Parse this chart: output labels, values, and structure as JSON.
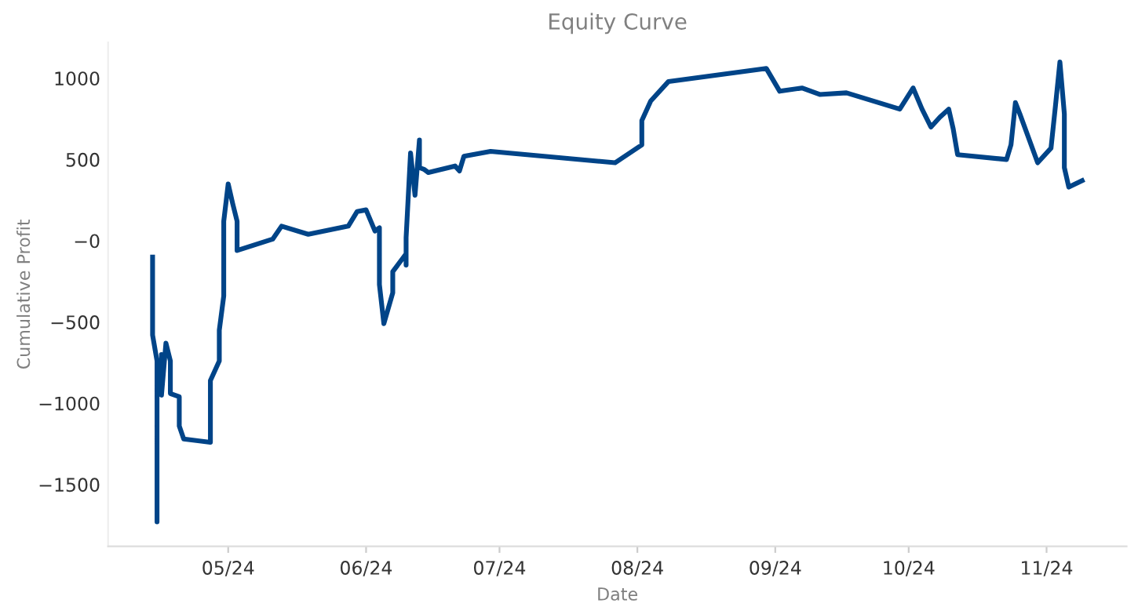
{
  "chart_data": {
    "type": "line",
    "title": "Equity Curve",
    "xlabel": "Date",
    "ylabel": "Cumulative Profit",
    "x": [
      "2024-04-14",
      "2024-04-14",
      "2024-04-15",
      "2024-04-15",
      "2024-04-15",
      "2024-04-16",
      "2024-04-16",
      "2024-04-16",
      "2024-04-17",
      "2024-04-18",
      "2024-04-18",
      "2024-04-20",
      "2024-04-20",
      "2024-04-21",
      "2024-04-27",
      "2024-04-27",
      "2024-04-29",
      "2024-04-29",
      "2024-04-30",
      "2024-04-30",
      "2024-05-01",
      "2024-05-02",
      "2024-05-03",
      "2024-05-03",
      "2024-05-11",
      "2024-05-13",
      "2024-05-19",
      "2024-05-28",
      "2024-05-30",
      "2024-06-01",
      "2024-06-03",
      "2024-06-04",
      "2024-06-04",
      "2024-06-05",
      "2024-06-07",
      "2024-06-07",
      "2024-06-10",
      "2024-06-10",
      "2024-06-10",
      "2024-06-11",
      "2024-06-12",
      "2024-06-13",
      "2024-06-13",
      "2024-06-14",
      "2024-06-15",
      "2024-06-21",
      "2024-06-22",
      "2024-06-23",
      "2024-06-29",
      "2024-07-27",
      "2024-08-02",
      "2024-08-02",
      "2024-08-04",
      "2024-08-08",
      "2024-08-30",
      "2024-09-02",
      "2024-09-07",
      "2024-09-11",
      "2024-09-17",
      "2024-09-29",
      "2024-10-02",
      "2024-10-04",
      "2024-10-06",
      "2024-10-08",
      "2024-10-10",
      "2024-10-11",
      "2024-10-12",
      "2024-10-23",
      "2024-10-24",
      "2024-10-25",
      "2024-10-26",
      "2024-10-30",
      "2024-11-02",
      "2024-11-03",
      "2024-11-04",
      "2024-11-05",
      "2024-11-05",
      "2024-11-06",
      "2024-11-09"
    ],
    "series": [
      {
        "color": "#004488",
        "values": [
          -100,
          -580,
          -740,
          -1730,
          -920,
          -900,
          -700,
          -950,
          -630,
          -740,
          -940,
          -960,
          -1140,
          -1220,
          -1240,
          -860,
          -740,
          -550,
          -340,
          120,
          350,
          230,
          120,
          -60,
          10,
          90,
          40,
          90,
          180,
          190,
          60,
          80,
          -270,
          -510,
          -320,
          -190,
          -80,
          -150,
          20,
          540,
          280,
          620,
          450,
          440,
          420,
          460,
          430,
          520,
          550,
          480,
          590,
          740,
          860,
          980,
          1060,
          920,
          940,
          900,
          910,
          810,
          940,
          810,
          700,
          760,
          810,
          690,
          530,
          500,
          590,
          850,
          780,
          480,
          570,
          830,
          1100,
          780,
          450,
          330,
          370
        ]
      }
    ],
    "xlim": [
      "2024-04-04",
      "2024-11-19"
    ],
    "xticks": [
      {
        "value": "2024-05-01",
        "label": "05/24"
      },
      {
        "value": "2024-06-01",
        "label": "06/24"
      },
      {
        "value": "2024-07-01",
        "label": "07/24"
      },
      {
        "value": "2024-08-01",
        "label": "08/24"
      },
      {
        "value": "2024-09-01",
        "label": "09/24"
      },
      {
        "value": "2024-10-01",
        "label": "10/24"
      },
      {
        "value": "2024-11-01",
        "label": "11/24"
      }
    ],
    "ylim": [
      -1880,
      1220
    ],
    "yticks": [
      -1500,
      -1000,
      -500,
      {
        "value": 0,
        "label": "−0"
      },
      500,
      1000
    ],
    "grid": false,
    "legend": false,
    "marker": "none",
    "line_style": "solid"
  }
}
